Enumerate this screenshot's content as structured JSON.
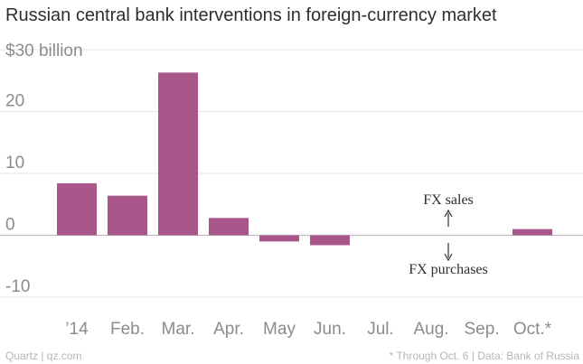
{
  "chart_data": {
    "type": "bar",
    "title": "Russian central bank interventions in foreign-currency market",
    "y_top_label": "$30 billion",
    "y_ticks": [
      {
        "value": 20,
        "label": "20"
      },
      {
        "value": 10,
        "label": "10"
      },
      {
        "value": 0,
        "label": "0"
      },
      {
        "value": -10,
        "label": "-10"
      }
    ],
    "ylim": [
      -10,
      30
    ],
    "categories": [
      "’14",
      "Feb.",
      "Mar.",
      "Apr.",
      "May",
      "Jun.",
      "Jul.",
      "Aug.",
      "Sep.",
      "Oct.*"
    ],
    "values": [
      8.4,
      6.4,
      26.3,
      2.8,
      -1.0,
      -1.6,
      0,
      0,
      0,
      1.0
    ],
    "bar_color": "#a9578a",
    "grid": true,
    "annotations": {
      "sales": "FX sales",
      "purchases": "FX purchases"
    }
  },
  "footer": {
    "source_left": "Quartz | qz.com",
    "source_right": "* Through Oct. 6 | Data: Bank of Russia"
  }
}
